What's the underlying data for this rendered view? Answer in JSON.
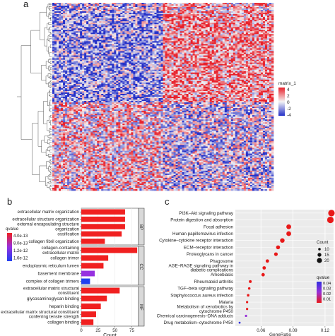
{
  "colors": {
    "heat_high": "#e8202a",
    "heat_mid": "#f4f4f4",
    "heat_low": "#2430c8",
    "bar_red": "#f02020",
    "bar_purple": "#9630e0",
    "bar_blue": "#2040f0",
    "dot_red": "#e81818",
    "dot_blue": "#3030e0",
    "facet_strip": "#d9d9d9"
  },
  "panel_a": {
    "label": "a",
    "legend": {
      "title": "matrix_1",
      "ticks": [
        "4",
        "2",
        "0",
        "-2",
        "-4"
      ]
    }
  },
  "panel_b": {
    "label": "b",
    "chart_data": {
      "type": "bar",
      "orientation": "horizontal",
      "xlabel": "Count",
      "xticks": [
        "0",
        "25",
        "50",
        "75"
      ],
      "xlim": [
        0,
        85
      ],
      "legend": {
        "title": "qvalue",
        "ticks": [
          "4.0e-13",
          "8.0e-13",
          "1.2e-12",
          "1.6e-12"
        ]
      },
      "facets": [
        {
          "name": "BP",
          "categories": [
            "extracellular matrix organization",
            "extracellular structure organization",
            "external encapsulating structure organization",
            "ossification",
            "collagen fibril organization"
          ],
          "category_lines": [
            [
              "extracellular matrix organization"
            ],
            [
              "extracellular structure organization"
            ],
            [
              "external encapsulating structure",
              "organization"
            ],
            [
              "ossification"
            ],
            [
              "collagen fibril organization"
            ]
          ],
          "values": [
            65,
            65,
            65,
            60,
            35
          ],
          "colors": [
            "#f02020",
            "#f02020",
            "#f02020",
            "#f02020",
            "#f02020"
          ]
        },
        {
          "name": "CC",
          "categories": [
            "collagen-containing extracellular matrix",
            "collagen trimer",
            "endoplasmic reticulum lumen",
            "basement membrane",
            "complex of collagen trimers"
          ],
          "category_lines": [
            [
              "collagen-containing",
              "extracellular matrix"
            ],
            [
              "collagen trimer"
            ],
            [
              "endoplasmic reticulum lumen"
            ],
            [
              "basement membrane"
            ],
            [
              "complex of collagen trimers"
            ]
          ],
          "values": [
            83,
            40,
            33,
            20,
            13
          ],
          "colors": [
            "#f02020",
            "#f02020",
            "#f02020",
            "#9630e0",
            "#2040f0"
          ]
        },
        {
          "name": "MF",
          "categories": [
            "extracellular matrix structural constituent",
            "glycosaminoglycan binding",
            "heparin binding",
            "extracellular matrix structural constituent conferring tensile strength",
            "collagen binding"
          ],
          "category_lines": [
            [
              "extracellular matrix structural",
              "constituent"
            ],
            [
              "glycosaminoglycan binding"
            ],
            [
              "heparin binding"
            ],
            [
              "extracellular matrix structural constituent",
              "conferring tensile strength"
            ],
            [
              "collagen binding"
            ]
          ],
          "values": [
            57,
            38,
            29,
            22,
            18
          ],
          "colors": [
            "#f02020",
            "#f02020",
            "#f02020",
            "#f02020",
            "#f02020"
          ]
        }
      ]
    }
  },
  "panel_c": {
    "label": "c",
    "chart_data": {
      "type": "scatter",
      "xlabel": "GeneRatio",
      "xticks": [
        0.06,
        0.09,
        0.12
      ],
      "xtick_labels": [
        "0.06",
        "0.09",
        "0.12"
      ],
      "xlim": [
        0.036,
        0.128
      ],
      "size_legend": {
        "title": "Count",
        "ticks": [
          "10",
          "15",
          "20"
        ]
      },
      "color_legend": {
        "title": "qvalue",
        "ticks": [
          "0.04",
          "0.03",
          "0.02",
          "0.01"
        ]
      },
      "categories": [
        "PI3K–Akt signaling pathway",
        "Protein digestion and absorption",
        "Focal adhesion",
        "Human papillomavirus infection",
        "Cytokine–cytokine receptor interaction",
        "ECM–receptor interaction",
        "Proteoglycans in cancer",
        "Phagosome",
        "AGE–RAGE signaling pathway in diabetic complications",
        "Amoebiasis",
        "Rheumatoid arthritis",
        "TGF–beta signaling pathway",
        "Staphylococcus aureus infection",
        "Malaria",
        "Metabolism of xenobiotics by cytochrome P450",
        "Chemical carcinogenesis–DNA adducts",
        "Drug metabolism–cytochrome P450"
      ],
      "category_lines": [
        [
          "PI3K–Akt signaling pathway"
        ],
        [
          "Protein digestion and absorption"
        ],
        [
          "Focal adhesion"
        ],
        [
          "Human papillomavirus infection"
        ],
        [
          "Cytokine–cytokine receptor interaction"
        ],
        [
          "ECM–receptor interaction"
        ],
        [
          "Proteoglycans in cancer"
        ],
        [
          "Phagosome"
        ],
        [
          "AGE–RAGE signaling pathway in",
          "diabetic complications"
        ],
        [
          "Amoebiasis"
        ],
        [
          "Rheumatoid arthritis"
        ],
        [
          "TGF–beta signaling pathway"
        ],
        [
          "Staphylococcus aureus infection"
        ],
        [
          "Malaria"
        ],
        [
          "Metabolism of xenobiotics by",
          "cytochrome P450"
        ],
        [
          "Chemical carcinogenesis–DNA adducts"
        ],
        [
          "Drug metabolism–cytochrome P450"
        ]
      ],
      "x": [
        0.126,
        0.125,
        0.086,
        0.086,
        0.08,
        0.076,
        0.074,
        0.066,
        0.063,
        0.062,
        0.05,
        0.049,
        0.048,
        0.047,
        0.047,
        0.046,
        0.04
      ],
      "count": [
        22,
        22,
        16,
        16,
        15,
        13,
        12,
        11,
        11,
        11,
        9,
        8,
        8,
        7,
        7,
        7,
        6
      ],
      "colors": [
        "#e81818",
        "#e81818",
        "#e81818",
        "#e81818",
        "#e81818",
        "#e81818",
        "#e81818",
        "#e81818",
        "#e81818",
        "#e81818",
        "#e81818",
        "#e81818",
        "#e81818",
        "#e81818",
        "#e81818",
        "#9830d8",
        "#3030e0"
      ]
    }
  }
}
